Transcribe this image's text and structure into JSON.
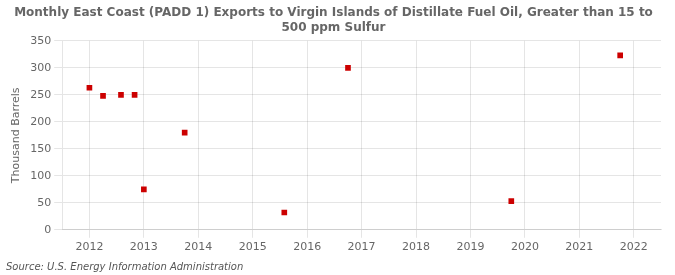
{
  "chart_data": {
    "type": "scatter",
    "title": "Monthly East Coast (PADD 1) Exports to Virgin Islands of Distillate Fuel Oil, Greater than 15 to\n500 ppm Sulfur",
    "ylabel": "Thousand Barrels",
    "annotations": [
      "Source: U.S. Energy Information Administration"
    ],
    "x": [
      2012.0,
      2012.25,
      2012.58,
      2012.83,
      2013.0,
      2013.75,
      2015.58,
      2016.75,
      2019.75,
      2021.75
    ],
    "values": [
      263,
      248,
      250,
      250,
      75,
      180,
      32,
      300,
      53,
      323
    ],
    "color": "#cc0000",
    "marker": "square",
    "xlim": [
      2011.5,
      2022.5
    ],
    "ylim": [
      0,
      350
    ],
    "xticks": [
      2012,
      2013,
      2014,
      2015,
      2016,
      2017,
      2018,
      2019,
      2020,
      2021,
      2022
    ],
    "yticks": [
      0,
      50,
      100,
      150,
      200,
      250,
      300,
      350
    ],
    "grid": true
  }
}
